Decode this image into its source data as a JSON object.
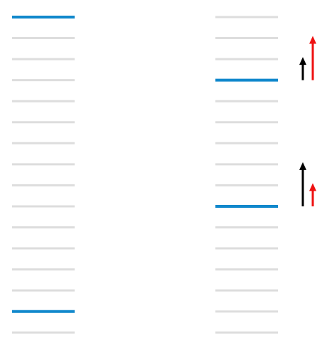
{
  "diagram": {
    "columns": [
      {
        "id": "left",
        "levels": [
          1,
          0,
          0,
          0,
          0,
          0,
          0,
          0,
          0,
          0,
          0,
          0,
          0,
          0,
          1,
          0
        ]
      },
      {
        "id": "right",
        "levels": [
          0,
          0,
          0,
          1,
          0,
          0,
          0,
          0,
          0,
          1,
          0,
          0,
          0,
          0,
          0,
          0
        ]
      }
    ],
    "arrow_groups": [
      {
        "column": "right",
        "base_level": 3,
        "arrows": [
          {
            "color_key": "black",
            "levels_up": 1
          },
          {
            "color_key": "red",
            "levels_up": 2
          }
        ]
      },
      {
        "column": "right",
        "base_level": 9,
        "arrows": [
          {
            "color_key": "black",
            "levels_up": 2
          },
          {
            "color_key": "red",
            "levels_up": 1
          }
        ]
      }
    ],
    "colors": {
      "level_line": "#dddddd",
      "highlight_line": "#1188cc",
      "black": "#000000",
      "red": "#ee1111"
    }
  }
}
